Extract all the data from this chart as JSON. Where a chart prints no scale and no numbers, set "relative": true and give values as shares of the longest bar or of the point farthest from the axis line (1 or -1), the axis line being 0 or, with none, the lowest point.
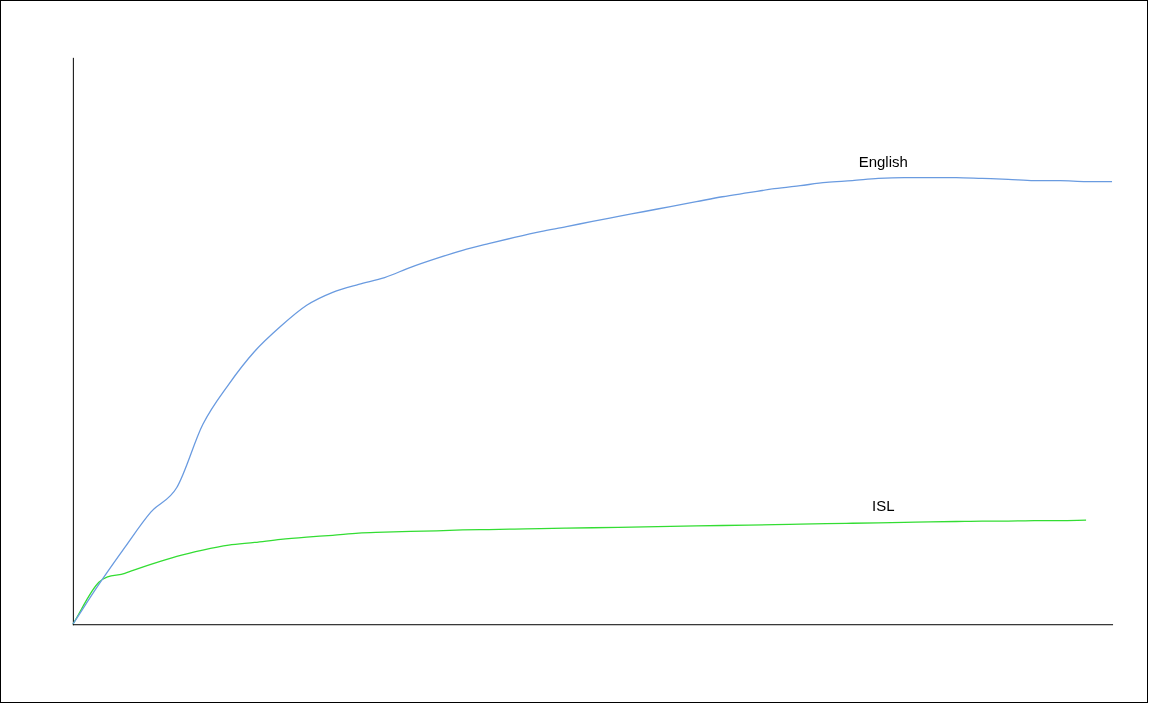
{
  "chart_data": {
    "type": "line",
    "relative": true,
    "grid": false,
    "legend": false,
    "marker": "none",
    "categories": [
      null,
      null,
      null,
      null,
      null,
      null,
      null,
      null,
      null,
      null,
      null,
      null,
      null,
      null,
      null,
      null,
      null,
      null,
      null,
      null,
      null,
      null,
      null,
      null,
      null,
      null,
      null,
      null,
      null,
      null,
      null,
      null,
      null,
      null,
      null,
      null,
      null,
      null,
      null,
      null,
      null
    ],
    "series": [
      {
        "name": "English",
        "color": "#6a9be0",
        "values": [
          0,
          0.089,
          0.172,
          0.251,
          0.306,
          0.447,
          0.537,
          0.611,
          0.667,
          0.714,
          0.743,
          0.761,
          0.776,
          0.799,
          0.819,
          0.837,
          0.852,
          0.866,
          0.879,
          0.89,
          0.902,
          0.913,
          0.924,
          0.935,
          0.946,
          0.957,
          0.966,
          0.975,
          0.982,
          0.989,
          0.993,
          0.998,
          1,
          1,
          1,
          0.998,
          0.996,
          0.993,
          0.993,
          0.991,
          0.991
        ]
      },
      {
        "name": "ISL",
        "color": "#33dd33",
        "values": [
          0,
          0.094,
          0.114,
          0.134,
          0.152,
          0.166,
          0.177,
          0.183,
          0.19,
          0.195,
          0.199,
          0.204,
          0.206,
          0.208,
          0.209,
          0.211,
          0.212,
          0.213,
          0.214,
          0.215,
          0.216,
          0.217,
          0.218,
          0.219,
          0.22,
          0.221,
          0.222,
          0.223,
          0.224,
          0.225,
          0.226,
          0.227,
          0.228,
          0.229,
          0.23,
          0.231,
          0.231,
          0.232,
          0.232,
          0.233,
          null
        ]
      }
    ]
  }
}
